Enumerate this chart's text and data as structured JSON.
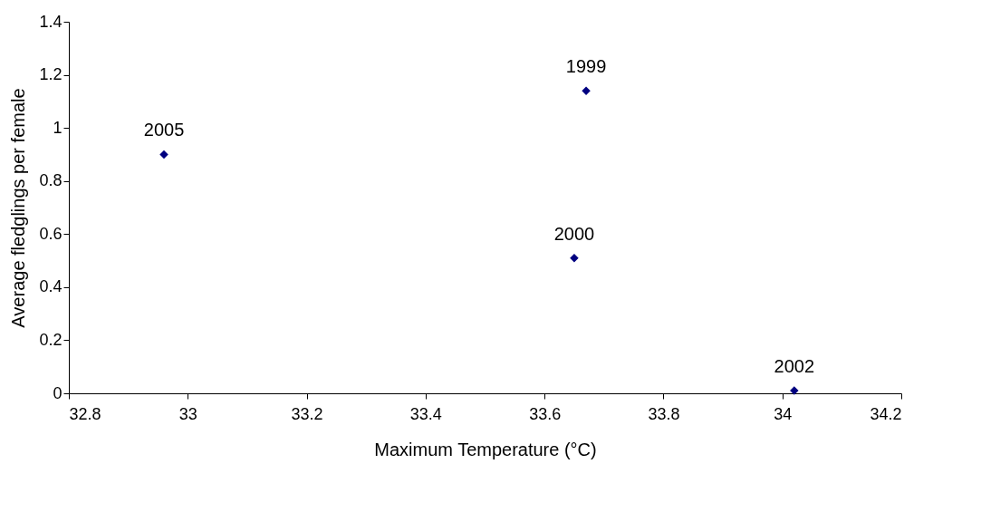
{
  "chart_data": {
    "type": "scatter",
    "xlabel": "Maximum Temperature (°C)",
    "ylabel": "Average fledglings per female",
    "x": [
      32.96,
      33.67,
      33.65,
      34.02
    ],
    "series": [
      {
        "color": "#000080",
        "values": [
          0.9,
          1.14,
          0.51,
          0.01
        ]
      }
    ],
    "marker": "diamond",
    "grid": false,
    "xlim": [
      32.8,
      34.2
    ],
    "xticks": [
      32.8,
      33,
      33.2,
      33.4,
      33.6,
      33.8,
      34,
      34.2
    ],
    "ylim": [
      0,
      1.4
    ],
    "yticks": [
      0,
      0.2,
      0.4,
      0.6,
      0.8,
      1,
      1.2,
      1.4
    ],
    "annotations": [
      {
        "text": "2005",
        "x": 32.96,
        "y": 0.9
      },
      {
        "text": "1999",
        "x": 33.67,
        "y": 1.14
      },
      {
        "text": "2000",
        "x": 33.65,
        "y": 0.51
      },
      {
        "text": "2002",
        "x": 34.02,
        "y": 0.01
      }
    ]
  }
}
